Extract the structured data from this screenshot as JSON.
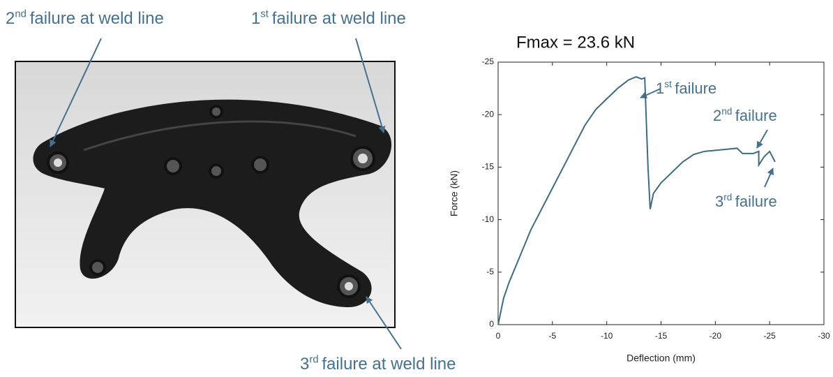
{
  "photo_labels": [
    {
      "number": "2",
      "suffix": "nd",
      "text": "failure at weld line"
    },
    {
      "number": "1",
      "suffix": "st",
      "text": "failure at weld line"
    },
    {
      "number": "3",
      "suffix": "rd",
      "text": "failure at weld line"
    }
  ],
  "chart_data": {
    "type": "line",
    "title": "Fmax = 23.6 kN",
    "xlabel": "Deflection (mm)",
    "ylabel": "Force (kN)",
    "xlim": [
      0,
      -30
    ],
    "xticks": [
      0,
      -5,
      -10,
      -15,
      -20,
      -25,
      -30
    ],
    "ylim": [
      0,
      -25
    ],
    "yticks": [
      0,
      -5,
      -10,
      -15,
      -20,
      -25
    ],
    "x": [
      0,
      -0.5,
      -1,
      -2,
      -3,
      -4,
      -5,
      -6,
      -7,
      -8,
      -9,
      -10,
      -11,
      -12,
      -12.7,
      -13.2,
      -13.5,
      -13.8,
      -14,
      -14.3,
      -15,
      -16,
      -17,
      -18,
      -19,
      -20,
      -21,
      -22,
      -22.5,
      -23.5,
      -24,
      -24,
      -24.5,
      -25,
      -25.5
    ],
    "series": [
      {
        "color": "#3d6b80",
        "values": [
          0,
          -2.5,
          -4,
          -6.5,
          -9,
          -11,
          -13,
          -15,
          -17,
          -19,
          -20.5,
          -21.5,
          -22.5,
          -23.3,
          -23.6,
          -23.4,
          -23.5,
          -15,
          -11,
          -12.5,
          -13.5,
          -14.5,
          -15.5,
          -16.2,
          -16.5,
          -16.6,
          -16.7,
          -16.8,
          -16.3,
          -16.3,
          -16.5,
          -15.2,
          -16,
          -16.5,
          -15.5
        ]
      }
    ],
    "annotations": [
      {
        "number": "1",
        "suffix": "st",
        "text": "failure"
      },
      {
        "number": "2",
        "suffix": "nd",
        "text": "failure"
      },
      {
        "number": "3",
        "suffix": "rd",
        "text": "failure"
      }
    ]
  }
}
